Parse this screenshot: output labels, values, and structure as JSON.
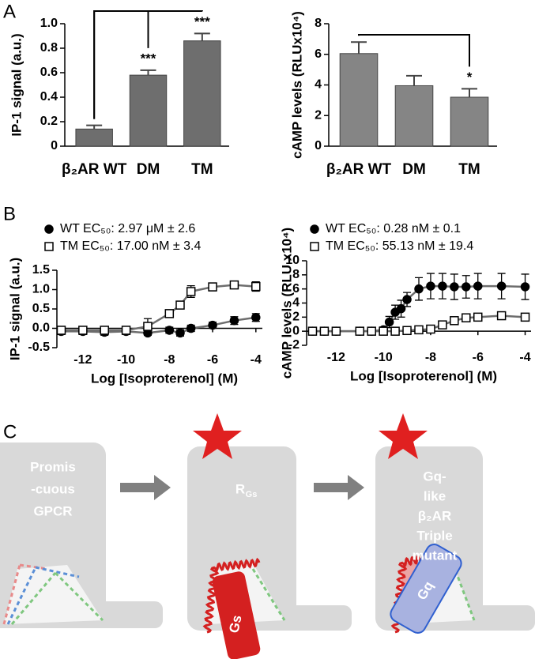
{
  "chart_data": [
    {
      "type": "bar",
      "panel_label": "A",
      "y_label": "IP-1 signal (a.u.)",
      "categories": [
        "β₂AR WT",
        "DM",
        "TM"
      ],
      "values": [
        0.14,
        0.58,
        0.86
      ],
      "errors": [
        0.03,
        0.04,
        0.06
      ],
      "color": "#6e6e6e",
      "ylim": [
        0,
        1
      ],
      "yticks": [
        0,
        0.2,
        0.4,
        0.6,
        0.8,
        {
          "value": 1,
          "label": "1.0"
        }
      ],
      "annotations": [
        {
          "text": "***",
          "category": "DM",
          "vs": "β₂AR WT"
        },
        {
          "text": "***",
          "category": "TM",
          "vs": "β₂AR WT"
        }
      ]
    },
    {
      "type": "bar",
      "y_label": "cAMP levels (RLUx10⁴)",
      "categories": [
        "β₂AR WT",
        "DM",
        "TM"
      ],
      "values": [
        6.05,
        3.95,
        3.2
      ],
      "errors": [
        0.75,
        0.65,
        0.55
      ],
      "color": "#858585",
      "ylim": [
        0,
        8
      ],
      "yticks": [
        0,
        2,
        4,
        6,
        8
      ],
      "annotations": [
        {
          "text": "*",
          "category": "TM",
          "vs": "β₂AR WT"
        }
      ]
    },
    {
      "type": "scatter",
      "panel_label": "B",
      "y_label": "IP-1 signal (a.u.)",
      "x_label": "Log [Isoproterenol] (M)",
      "xlim": [
        -13.2,
        -3.7
      ],
      "xticks": [
        -12,
        -10,
        -8,
        -6,
        -4
      ],
      "ylim": [
        -0.5,
        1.5
      ],
      "yticks": [
        -0.5,
        {
          "value": 0,
          "label": "0.0"
        },
        0.5,
        {
          "value": 1,
          "label": "1.0"
        },
        1.5
      ],
      "line_color": "#6d6d6d",
      "series": [
        {
          "name": "WT EC₅₀: 2.97 μM ± 2.6",
          "marker": "circle",
          "filled": true,
          "x": [
            -13,
            -12,
            -11,
            -10,
            -9,
            -8,
            -7.5,
            -7,
            -6,
            -5,
            -4
          ],
          "values": [
            -0.08,
            -0.08,
            -0.1,
            -0.08,
            -0.12,
            -0.05,
            -0.12,
            0.0,
            0.08,
            0.2,
            0.28
          ],
          "errors": [
            0.08,
            0.08,
            0.08,
            0.08,
            0.06,
            0.08,
            0.08,
            0.08,
            0.08,
            0.1,
            0.1
          ]
        },
        {
          "name": "TM EC₅₀:  17.00 nM ± 3.4",
          "marker": "square",
          "filled": false,
          "x": [
            -13,
            -12,
            -11,
            -10,
            -9,
            -8,
            -7.5,
            -7,
            -6,
            -5,
            -4
          ],
          "values": [
            -0.05,
            -0.05,
            -0.05,
            -0.05,
            0.05,
            0.38,
            0.6,
            0.95,
            1.07,
            1.12,
            1.08
          ],
          "errors": [
            0.05,
            0.05,
            0.05,
            0.05,
            0.2,
            0.1,
            0.08,
            0.15,
            0.1,
            0.05,
            0.12
          ]
        }
      ]
    },
    {
      "type": "scatter",
      "y_label": "cAMP levels (RLU x10⁴)",
      "x_label": "Log [Isoproterenol] (M)",
      "xlim": [
        -13.25,
        -3.75
      ],
      "xticks": [
        -12,
        -10,
        -8,
        -6,
        -4
      ],
      "ylim": [
        -2,
        10
      ],
      "yticks": [
        -2,
        0,
        2,
        4,
        6,
        8,
        10
      ],
      "line_color": "#6d6d6d",
      "series": [
        {
          "name": "WT EC₅₀: 0.28 nM ± 0.1",
          "marker": "circle",
          "filled": true,
          "x": [
            -13,
            -12.5,
            -12,
            -11,
            -10.5,
            -10,
            -9.75,
            -9.5,
            -9.25,
            -9,
            -8.5,
            -8,
            -7.5,
            -7,
            -6.5,
            -6,
            -5,
            -4
          ],
          "values": [
            0,
            0,
            0,
            0,
            0,
            0.2,
            1.3,
            2.7,
            3.2,
            4.5,
            6.0,
            6.4,
            6.4,
            6.3,
            6.3,
            6.4,
            6.4,
            6.3
          ],
          "errors": [
            0.3,
            0.3,
            0.3,
            0.3,
            0.3,
            0.4,
            0.8,
            1.0,
            1.2,
            1.0,
            1.6,
            1.8,
            1.8,
            1.8,
            1.6,
            1.8,
            1.8,
            1.8
          ]
        },
        {
          "name": "TM EC₅₀:  55.13 nM ± 19.4",
          "marker": "square",
          "filled": false,
          "x": [
            -13,
            -12.5,
            -12,
            -11,
            -10.5,
            -10,
            -9.5,
            -9,
            -8.5,
            -8,
            -7.5,
            -7,
            -6.5,
            -6,
            -5,
            -4
          ],
          "values": [
            0,
            0,
            0,
            0,
            0,
            0,
            0,
            0.1,
            0.2,
            0.3,
            0.9,
            1.5,
            1.9,
            2.0,
            2.2,
            2.0
          ],
          "errors": [
            0.2,
            0.2,
            0.2,
            0.2,
            0.2,
            0.1,
            0.1,
            0.2,
            0.2,
            0.2,
            0.3,
            0.3,
            0.3,
            0.3,
            0.4,
            0.4
          ]
        }
      ]
    }
  ],
  "diagram": {
    "panel_label": "C",
    "panels": [
      {
        "lines": [
          "Promis",
          "-cuous",
          "GPCR"
        ]
      },
      {
        "label": "R",
        "label_sub": "Gs",
        "protein": "Gs"
      },
      {
        "lines": [
          "Gq-",
          "like",
          "β₂AR",
          "Triple",
          "mutant"
        ],
        "protein": "Gq"
      }
    ]
  }
}
